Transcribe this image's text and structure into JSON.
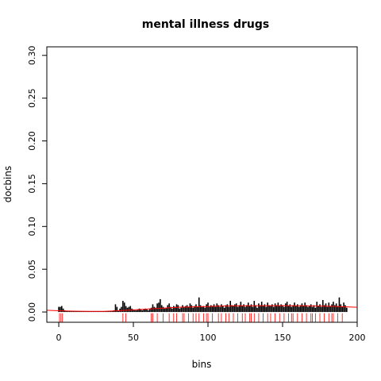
{
  "chart_data": {
    "type": "bar",
    "title": "mental illness drugs",
    "xlabel": "bins",
    "ylabel": "docbins",
    "xlim": [
      -8,
      200
    ],
    "ylim": [
      -0.012,
      0.31
    ],
    "x_ticks": [
      0,
      50,
      100,
      150,
      200
    ],
    "y_ticks": [
      0.0,
      0.05,
      0.1,
      0.15,
      0.2,
      0.25,
      0.3
    ],
    "x_tick_labels": [
      "0",
      "50",
      "100",
      "150",
      "200"
    ],
    "y_tick_labels": [
      "0.00",
      "0.05",
      "0.10",
      "0.15",
      "0.20",
      "0.25",
      "0.30"
    ],
    "bar_color": "#000000",
    "smooth_color": "#ff0000",
    "rug_color": "#ff0000",
    "grid": false,
    "legend": "none",
    "series": [
      {
        "style": "histogram-bars",
        "x": [
          0,
          1,
          2,
          3,
          4,
          5,
          6,
          7,
          8,
          9,
          10,
          11,
          12,
          13,
          14,
          15,
          16,
          17,
          18,
          19,
          20,
          21,
          22,
          23,
          24,
          25,
          26,
          27,
          28,
          29,
          30,
          31,
          32,
          33,
          34,
          35,
          36,
          37,
          38,
          39,
          40,
          41,
          42,
          43,
          44,
          45,
          46,
          47,
          48,
          49,
          50,
          51,
          52,
          53,
          54,
          55,
          56,
          57,
          58,
          59,
          60,
          61,
          62,
          63,
          64,
          65,
          66,
          67,
          68,
          69,
          70,
          71,
          72,
          73,
          74,
          75,
          76,
          77,
          78,
          79,
          80,
          81,
          82,
          83,
          84,
          85,
          86,
          87,
          88,
          89,
          90,
          91,
          92,
          93,
          94,
          95,
          96,
          97,
          98,
          99,
          100,
          101,
          102,
          103,
          104,
          105,
          106,
          107,
          108,
          109,
          110,
          111,
          112,
          113,
          114,
          115,
          116,
          117,
          118,
          119,
          120,
          121,
          122,
          123,
          124,
          125,
          126,
          127,
          128,
          129,
          130,
          131,
          132,
          133,
          134,
          135,
          136,
          137,
          138,
          139,
          140,
          141,
          142,
          143,
          144,
          145,
          146,
          147,
          148,
          149,
          150,
          151,
          152,
          153,
          154,
          155,
          156,
          157,
          158,
          159,
          160,
          161,
          162,
          163,
          164,
          165,
          166,
          167,
          168,
          169,
          170,
          171,
          172,
          173,
          174,
          175,
          176,
          177,
          178,
          179,
          180,
          181,
          182,
          183,
          184,
          185,
          186,
          187,
          188,
          189,
          190,
          191,
          192,
          193
        ],
        "values": [
          0.006,
          0.006,
          0.007,
          0.004,
          0.002,
          0.001,
          0.001,
          0.001,
          0.001,
          0.001,
          0.001,
          0.001,
          0.001,
          0.001,
          0.001,
          0.001,
          0.001,
          0.001,
          0.001,
          0.001,
          0.001,
          0.001,
          0.001,
          0.001,
          0.001,
          0.001,
          0.001,
          0.001,
          0.001,
          0.001,
          0.001,
          0.001,
          0.001,
          0.001,
          0.001,
          0.001,
          0.001,
          0.002,
          0.009,
          0.006,
          0.002,
          0.004,
          0.006,
          0.013,
          0.011,
          0.007,
          0.005,
          0.006,
          0.007,
          0.004,
          0.003,
          0.002,
          0.002,
          0.003,
          0.004,
          0.003,
          0.002,
          0.003,
          0.004,
          0.003,
          0.002,
          0.004,
          0.005,
          0.009,
          0.006,
          0.005,
          0.01,
          0.011,
          0.015,
          0.008,
          0.006,
          0.004,
          0.005,
          0.008,
          0.01,
          0.006,
          0.004,
          0.007,
          0.006,
          0.009,
          0.008,
          0.004,
          0.005,
          0.008,
          0.006,
          0.007,
          0.008,
          0.006,
          0.01,
          0.008,
          0.005,
          0.007,
          0.009,
          0.006,
          0.017,
          0.008,
          0.006,
          0.007,
          0.005,
          0.009,
          0.011,
          0.006,
          0.008,
          0.007,
          0.009,
          0.006,
          0.01,
          0.008,
          0.006,
          0.009,
          0.007,
          0.005,
          0.008,
          0.009,
          0.006,
          0.013,
          0.008,
          0.007,
          0.009,
          0.01,
          0.006,
          0.008,
          0.012,
          0.007,
          0.009,
          0.006,
          0.008,
          0.011,
          0.007,
          0.009,
          0.006,
          0.013,
          0.008,
          0.005,
          0.01,
          0.008,
          0.012,
          0.007,
          0.009,
          0.006,
          0.011,
          0.008,
          0.007,
          0.009,
          0.006,
          0.01,
          0.008,
          0.011,
          0.007,
          0.009,
          0.008,
          0.006,
          0.01,
          0.012,
          0.007,
          0.009,
          0.006,
          0.008,
          0.011,
          0.007,
          0.009,
          0.006,
          0.008,
          0.01,
          0.007,
          0.011,
          0.008,
          0.006,
          0.007,
          0.009,
          0.006,
          0.008,
          0.005,
          0.012,
          0.007,
          0.009,
          0.006,
          0.014,
          0.008,
          0.01,
          0.006,
          0.011,
          0.007,
          0.009,
          0.012,
          0.008,
          0.01,
          0.007,
          0.017,
          0.009,
          0.006,
          0.011,
          0.008,
          0.005
        ]
      },
      {
        "style": "smoothed-line",
        "x": [
          -8,
          0,
          10,
          20,
          30,
          40,
          50,
          60,
          70,
          80,
          90,
          100,
          110,
          120,
          130,
          140,
          150,
          160,
          170,
          180,
          190,
          200
        ],
        "values": [
          0.002,
          0.0015,
          0.001,
          0.0008,
          0.0008,
          0.0015,
          0.0025,
          0.0035,
          0.0045,
          0.0055,
          0.006,
          0.0065,
          0.007,
          0.0072,
          0.0073,
          0.0074,
          0.0074,
          0.0073,
          0.0071,
          0.0068,
          0.0062,
          0.0055
        ]
      }
    ],
    "rug_x": [
      0.5,
      1.5,
      2.5,
      43,
      45,
      62,
      63,
      66,
      70,
      74,
      77,
      79,
      83,
      84,
      87,
      90,
      92,
      94,
      97,
      99,
      100,
      103,
      107,
      109,
      112,
      114,
      117,
      120,
      123,
      125,
      128,
      129,
      131,
      134,
      137,
      140,
      142,
      145,
      148,
      151,
      154,
      156,
      157,
      160,
      163,
      166,
      169,
      170,
      172,
      175,
      178,
      181,
      183,
      184,
      187,
      190
    ]
  }
}
